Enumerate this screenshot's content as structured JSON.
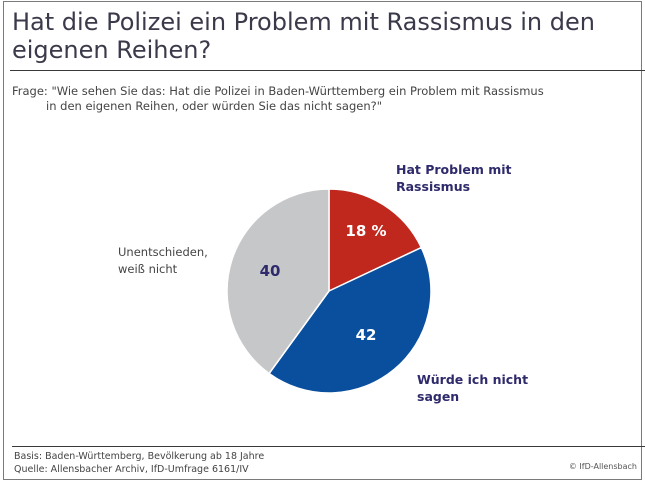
{
  "title": "Hat die Polizei ein Problem mit Rassismus in den eigenen Reihen?",
  "title_lines": [
    "Hat die Polizei ein Problem mit Rassismus in den",
    "eigenen Reihen?"
  ],
  "question_lines": [
    "Frage: \"Wie sehen Sie das: Hat die Polizei in Baden-Württemberg ein Problem mit Rassismus",
    "in den eigenen Reihen, oder würden Sie das nicht sagen?\""
  ],
  "footer": {
    "basis": "Basis: Baden-Württemberg, Bevölkerung ab 18 Jahre",
    "source": "Quelle: Allensbacher Archiv, IfD-Umfrage 6161/IV",
    "copyright": "© IfD-Allensbach"
  },
  "chart_data": {
    "type": "pie",
    "title": "Hat die Polizei ein Problem mit Rassismus in den eigenen Reihen?",
    "unit": "%",
    "start_angle_deg": 0,
    "direction": "clockwise",
    "slices": [
      {
        "label": "Hat Problem mit Rassismus",
        "label_lines": [
          "Hat Problem mit",
          "Rassismus"
        ],
        "value": 18,
        "value_label": "18 %",
        "color": "#c0281e",
        "value_color": "#ffffff",
        "label_color": "#2e2a6b",
        "label_bold": true
      },
      {
        "label": "Würde ich nicht sagen",
        "label_lines": [
          "Würde ich nicht",
          "sagen"
        ],
        "value": 42,
        "value_label": "42",
        "color": "#0a4f9e",
        "value_color": "#ffffff",
        "label_color": "#2e2a6b",
        "label_bold": true
      },
      {
        "label": "Unentschieden, weiß nicht",
        "label_lines": [
          "Unentschieden,",
          "weiß nicht"
        ],
        "value": 40,
        "value_label": "40",
        "color": "#c6c7c9",
        "value_color": "#2e2a6b",
        "label_color": "#444444",
        "label_bold": false
      }
    ]
  }
}
